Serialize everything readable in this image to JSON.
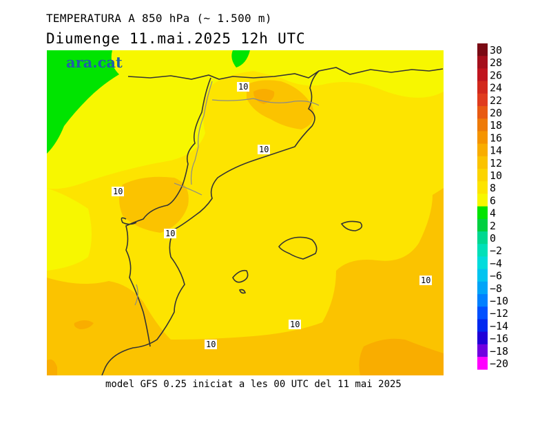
{
  "header": {
    "title": "TEMPERATURA A 850 hPa (~ 1.500 m)",
    "subtitle": "Diumenge  11.mai.2025 12h UTC"
  },
  "footer": {
    "text": "model GFS 0.25 iniciat a les 00 UTC del 11 mai 2025"
  },
  "brand": {
    "logo_text": "ara.cat",
    "color": "#1f5fa8"
  },
  "map": {
    "contour_labels": [
      "10",
      "10",
      "10",
      "10",
      "10",
      "10",
      "10"
    ]
  },
  "legend": {
    "labels": [
      "30",
      "28",
      "26",
      "24",
      "22",
      "20",
      "18",
      "16",
      "14",
      "12",
      "10",
      "8",
      "6",
      "4",
      "2",
      "0",
      "−2",
      "−4",
      "−6",
      "−8",
      "−10",
      "−12",
      "−14",
      "−16",
      "−18",
      "−20"
    ],
    "colors": [
      "#7a0a14",
      "#a50f1c",
      "#c0141e",
      "#d2281c",
      "#e03c1e",
      "#e85a12",
      "#ee7a08",
      "#f59400",
      "#f9ad00",
      "#fbc300",
      "#fcd400",
      "#fde400",
      "#f7f700",
      "#00e400",
      "#00d040",
      "#00d890",
      "#00e0b8",
      "#00dcdc",
      "#00c4f0",
      "#00a4f8",
      "#0080ff",
      "#0050ff",
      "#0028f0",
      "#2000d8",
      "#7000e0",
      "#ff00ff"
    ]
  },
  "colors": {
    "green_zone": "#00e400",
    "yellow_zone": "#f7f700",
    "warm_8": "#fde400",
    "warm_10": "#fcd400",
    "warm_12": "#fbc300",
    "warm_14": "#f9ad00"
  }
}
